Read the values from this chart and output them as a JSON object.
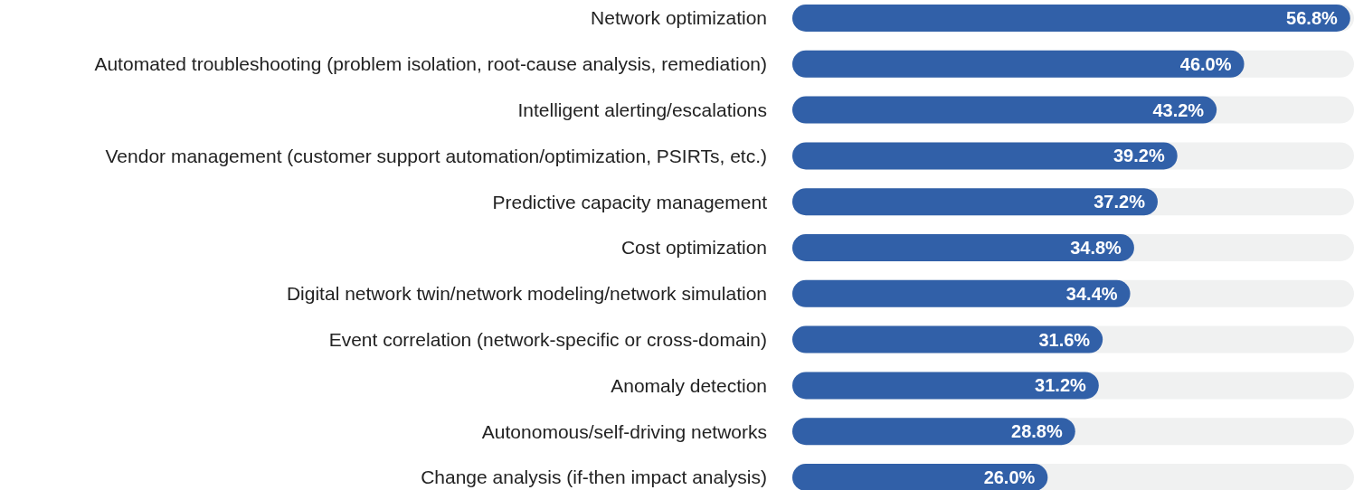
{
  "chart_data": {
    "type": "bar",
    "orientation": "horizontal",
    "categories": [
      "Network optimization",
      "Automated troubleshooting (problem isolation, root-cause analysis, remediation)",
      "Intelligent alerting/escalations",
      "Vendor management (customer support automation/optimization, PSIRTs, etc.)",
      "Predictive capacity management",
      "Cost optimization",
      "Digital network twin/network modeling/network simulation",
      "Event correlation (network-specific or cross-domain)",
      "Anomaly detection",
      "Autonomous/self-driving networks",
      "Change analysis (if-then impact analysis)"
    ],
    "values": [
      56.8,
      46.0,
      43.2,
      39.2,
      37.2,
      34.8,
      34.4,
      31.6,
      31.2,
      28.8,
      26.0
    ],
    "value_labels": [
      "56.8%",
      "46.0%",
      "43.2%",
      "39.2%",
      "37.2%",
      "34.8%",
      "34.4%",
      "31.6%",
      "31.2%",
      "28.8%",
      "26.0%"
    ],
    "color": "#3160a8",
    "xlim": [
      0,
      57
    ],
    "tick_labels": "y"
  }
}
